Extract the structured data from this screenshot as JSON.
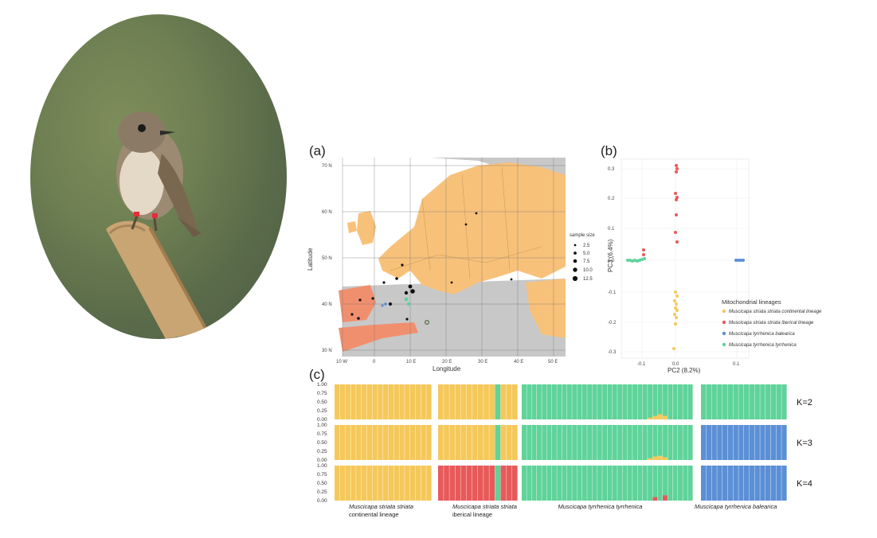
{
  "panels": {
    "a": "(a)",
    "b": "(b)",
    "c": "(c)"
  },
  "photo": {
    "subject": "spotted flycatcher perched on a bamboo stick"
  },
  "map": {
    "xlabel": "Longitude",
    "ylabel": "Latitude",
    "lat_ticks": [
      "70 N",
      "60 N",
      "50 N",
      "40 N",
      "30 N"
    ],
    "lon_ticks": [
      "10 W",
      "0",
      "10 E",
      "20 E",
      "30 E",
      "40 E",
      "50 E"
    ],
    "legend_title": "sample size",
    "legend_items": [
      "2.5",
      "5.0",
      "7.5",
      "10.0",
      "12.5"
    ],
    "colors": {
      "land_range": "#f8c17a",
      "land_other": "#c8c8c8",
      "iberia": "#f08f6e",
      "sea": "#ffffff"
    }
  },
  "pca": {
    "xlabel": "PC2 (8.2%)",
    "ylabel": "PC3 (6.4%)",
    "x_ticks": [
      "-0.1",
      "0.0",
      "0.1"
    ],
    "y_ticks": [
      "0.3",
      "0.2",
      "0.1",
      "0.0",
      "-0.1",
      "-0.2",
      "-0.3"
    ],
    "legend_title": "Mitochondrial lineages",
    "legend": [
      {
        "label": "Muscicapa striata striata continental lineage",
        "color": "#f5c85a"
      },
      {
        "label": "Muscicapa striata striata iberical lineage",
        "color": "#e8595a"
      },
      {
        "label": "Muscicapa tyrrhenica balearica",
        "color": "#5b8fd6"
      },
      {
        "label": "Muscicapa tyrrhenica tyrrhenica",
        "color": "#5fd39a"
      }
    ]
  },
  "chart_data": {
    "type": "bar",
    "title": "",
    "ylim": [
      0,
      1
    ],
    "y_ticks": [
      "1.00",
      "0.75",
      "0.50",
      "0.25",
      "0.00"
    ],
    "colors": {
      "yellow": "#f5c85a",
      "red": "#e8595a",
      "green": "#5fd39a",
      "blue": "#5b8fd6"
    },
    "groups": [
      {
        "label_line1": "Muscicapa striata striata",
        "label_line2": "continental lineage",
        "n": 18
      },
      {
        "label_line1": "Muscicapa striata striata",
        "label_line2": "iberical lineage",
        "n": 14
      },
      {
        "label_line1": "Muscicapa tyrrhenica tyrrhenica",
        "label_line2": "",
        "n": 34
      },
      {
        "label_line1": "Muscicapa tyrrhenica balearica",
        "label_line2": "",
        "n": 16
      }
    ],
    "rows": [
      {
        "k": "K=2",
        "group_colors": [
          "yellow",
          "yellow",
          "green",
          "green"
        ],
        "exceptions": [
          {
            "group": 1,
            "index": 10,
            "color": "green",
            "value": 1.0
          },
          {
            "group": 2,
            "index": 25,
            "color": "yellow",
            "value": 0.05
          },
          {
            "group": 2,
            "index": 26,
            "color": "yellow",
            "value": 0.1
          },
          {
            "group": 2,
            "index": 27,
            "color": "yellow",
            "value": 0.15
          },
          {
            "group": 2,
            "index": 28,
            "color": "yellow",
            "value": 0.1
          }
        ]
      },
      {
        "k": "K=3",
        "group_colors": [
          "yellow",
          "yellow",
          "green",
          "blue"
        ],
        "exceptions": [
          {
            "group": 1,
            "index": 10,
            "color": "green",
            "value": 1.0
          },
          {
            "group": 2,
            "index": 25,
            "color": "yellow",
            "value": 0.05
          },
          {
            "group": 2,
            "index": 26,
            "color": "yellow",
            "value": 0.1
          },
          {
            "group": 2,
            "index": 27,
            "color": "yellow",
            "value": 0.12
          },
          {
            "group": 2,
            "index": 28,
            "color": "yellow",
            "value": 0.08
          }
        ]
      },
      {
        "k": "K=4",
        "group_colors": [
          "yellow",
          "red",
          "green",
          "blue"
        ],
        "exceptions": [
          {
            "group": 1,
            "index": 10,
            "color": "green",
            "value": 1.0
          },
          {
            "group": 2,
            "index": 26,
            "color": "red",
            "value": 0.1
          },
          {
            "group": 2,
            "index": 28,
            "color": "red",
            "value": 0.15
          }
        ]
      }
    ]
  }
}
